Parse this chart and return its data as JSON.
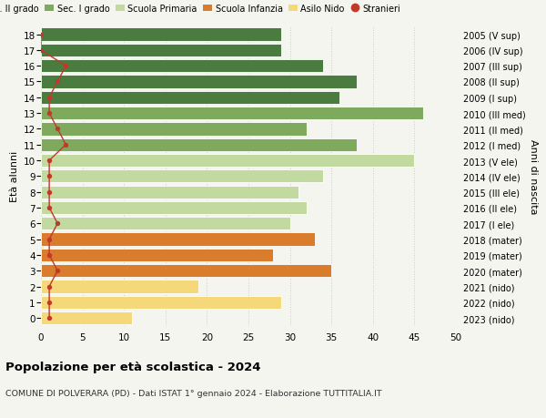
{
  "ages": [
    18,
    17,
    16,
    15,
    14,
    13,
    12,
    11,
    10,
    9,
    8,
    7,
    6,
    5,
    4,
    3,
    2,
    1,
    0
  ],
  "years": [
    "2005 (V sup)",
    "2006 (IV sup)",
    "2007 (III sup)",
    "2008 (II sup)",
    "2009 (I sup)",
    "2010 (III med)",
    "2011 (II med)",
    "2012 (I med)",
    "2013 (V ele)",
    "2014 (IV ele)",
    "2015 (III ele)",
    "2016 (II ele)",
    "2017 (I ele)",
    "2018 (mater)",
    "2019 (mater)",
    "2020 (mater)",
    "2021 (nido)",
    "2022 (nido)",
    "2023 (nido)"
  ],
  "values": [
    29,
    29,
    34,
    38,
    36,
    46,
    32,
    38,
    45,
    34,
    31,
    32,
    30,
    33,
    28,
    35,
    19,
    29,
    11
  ],
  "stranieri": [
    0,
    0,
    3,
    2,
    1,
    1,
    2,
    3,
    1,
    1,
    1,
    1,
    2,
    1,
    1,
    2,
    1,
    1,
    1
  ],
  "bar_colors": [
    "#4a7c3f",
    "#4a7c3f",
    "#4a7c3f",
    "#4a7c3f",
    "#4a7c3f",
    "#7faa5e",
    "#7faa5e",
    "#7faa5e",
    "#c2d9a0",
    "#c2d9a0",
    "#c2d9a0",
    "#c2d9a0",
    "#c2d9a0",
    "#d97c2b",
    "#d97c2b",
    "#d97c2b",
    "#f5d87a",
    "#f5d87a",
    "#f5d87a"
  ],
  "legend_colors": [
    "#4a7c3f",
    "#7faa5e",
    "#c2d9a0",
    "#d97c2b",
    "#f5d87a",
    "#c0392b"
  ],
  "legend_labels": [
    "Sec. II grado",
    "Sec. I grado",
    "Scuola Primaria",
    "Scuola Infanzia",
    "Asilo Nido",
    "Stranieri"
  ],
  "stranieri_color": "#c0392b",
  "title1": "Popolazione per età scolastica - 2024",
  "title2": "COMUNE DI POLVERARA (PD) - Dati ISTAT 1° gennaio 2024 - Elaborazione TUTTITALIA.IT",
  "ylabel_left": "Età alunni",
  "ylabel_right": "Anni di nascita",
  "xlim": [
    0,
    50
  ],
  "xticks": [
    0,
    5,
    10,
    15,
    20,
    25,
    30,
    35,
    40,
    45,
    50
  ],
  "bar_height": 0.82,
  "background_color": "#f5f5f0",
  "grid_color": "#cccccc"
}
